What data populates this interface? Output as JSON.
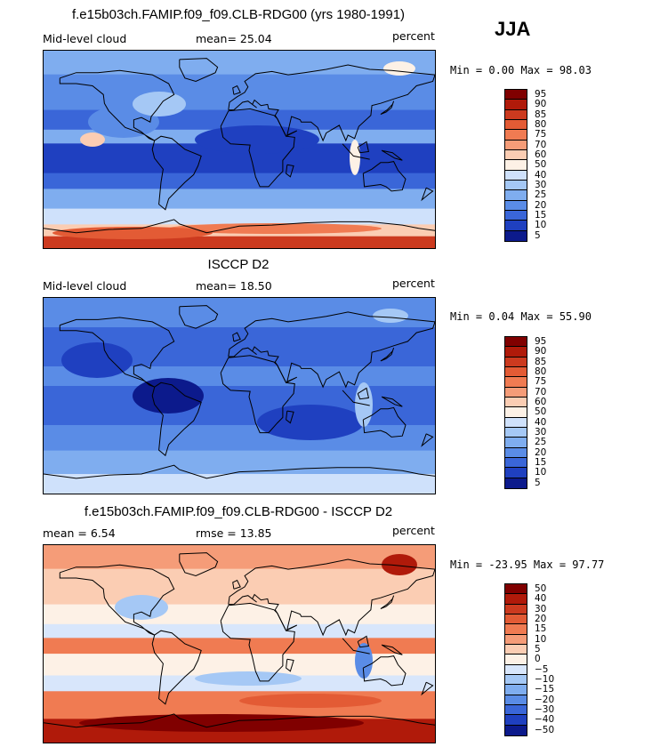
{
  "season": "JJA",
  "panels": [
    {
      "title": "f.e15b03ch.FAMIP.f09_f09.CLB-RDG00 (yrs 1980-1991)",
      "left_label": "Mid-level cloud",
      "center_label": "mean=  25.04",
      "right_label": "percent",
      "minmax": "Min =   0.00 Max =  98.03",
      "colorbar_labels": [
        "95",
        "90",
        "85",
        "80",
        "75",
        "70",
        "60",
        "50",
        "40",
        "30",
        "25",
        "20",
        "15",
        "10",
        "5"
      ]
    },
    {
      "title": "ISCCP D2",
      "left_label": "Mid-level cloud",
      "center_label": "mean=  18.50",
      "right_label": "percent",
      "minmax": "Min =   0.04 Max =  55.90",
      "colorbar_labels": [
        "95",
        "90",
        "85",
        "80",
        "75",
        "70",
        "60",
        "50",
        "40",
        "30",
        "25",
        "20",
        "15",
        "10",
        "5"
      ]
    },
    {
      "title": "f.e15b03ch.FAMIP.f09_f09.CLB-RDG00 - ISCCP D2",
      "left_label": "mean =   6.54",
      "center_label": "rmse =  13.85",
      "right_label": "percent",
      "minmax": "Min = -23.95 Max =  97.77",
      "colorbar_labels": [
        "50",
        "40",
        "30",
        "20",
        "15",
        "10",
        "5",
        "0",
        "−5",
        "−10",
        "−15",
        "−20",
        "−30",
        "−40",
        "−50"
      ]
    }
  ],
  "colors": {
    "cloud_scale": [
      "#800000",
      "#b01a0a",
      "#cc3a1f",
      "#e35b35",
      "#f07b52",
      "#f59c78",
      "#fbcdb3",
      "#fdf1e6",
      "#cfe1fb",
      "#a5c8f5",
      "#7fadef",
      "#5a8ce6",
      "#3a66d8",
      "#1f40c0",
      "#0c1a8c"
    ],
    "diff_scale": [
      "#800000",
      "#b01a0a",
      "#cc3a1f",
      "#e35b35",
      "#f07b52",
      "#f59c78",
      "#fbcdb3",
      "#fdf1e6",
      "#d8e6fb",
      "#a5c8f5",
      "#7fadef",
      "#5a8ce6",
      "#3a66d8",
      "#1f40c0",
      "#0c1a8c"
    ]
  },
  "chart_data": [
    {
      "type": "heatmap",
      "title": "f.e15b03ch.FAMIP.f09_f09.CLB-RDG00 (yrs 1980-1991)",
      "variable": "Mid-level cloud",
      "units": "percent",
      "mean": 25.04,
      "min": 0.0,
      "max": 98.03,
      "levels": [
        5,
        10,
        15,
        20,
        25,
        30,
        40,
        50,
        60,
        70,
        75,
        80,
        85,
        90,
        95
      ]
    },
    {
      "type": "heatmap",
      "title": "ISCCP D2",
      "variable": "Mid-level cloud",
      "units": "percent",
      "mean": 18.5,
      "min": 0.04,
      "max": 55.9,
      "levels": [
        5,
        10,
        15,
        20,
        25,
        30,
        40,
        50,
        60,
        70,
        75,
        80,
        85,
        90,
        95
      ]
    },
    {
      "type": "heatmap",
      "title": "f.e15b03ch.FAMIP.f09_f09.CLB-RDG00 - ISCCP D2",
      "units": "percent",
      "mean": 6.54,
      "rmse": 13.85,
      "min": -23.95,
      "max": 97.77,
      "levels": [
        -50,
        -40,
        -30,
        -20,
        -15,
        -10,
        -5,
        0,
        5,
        10,
        15,
        20,
        30,
        40,
        50
      ]
    }
  ]
}
